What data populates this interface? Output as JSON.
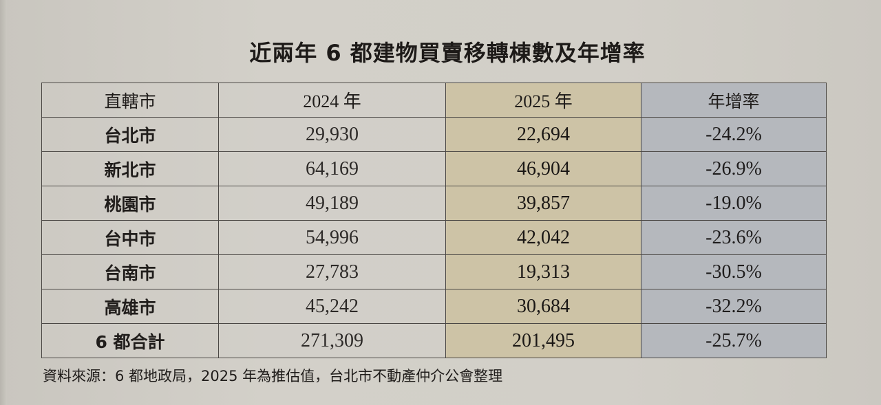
{
  "title": "近兩年 6 都建物買賣移轉棟數及年增率",
  "table": {
    "headers": {
      "city": "直轄市",
      "y2024": "2024 年",
      "y2025": "2025 年",
      "rate": "年增率"
    },
    "rows": [
      {
        "city": "台北市",
        "y2024": "29,930",
        "y2025": "22,694",
        "rate": "-24.2%"
      },
      {
        "city": "新北市",
        "y2024": "64,169",
        "y2025": "46,904",
        "rate": "-26.9%"
      },
      {
        "city": "桃園市",
        "y2024": "49,189",
        "y2025": "39,857",
        "rate": "-19.0%"
      },
      {
        "city": "台中市",
        "y2024": "54,996",
        "y2025": "42,042",
        "rate": "-23.6%"
      },
      {
        "city": "台南市",
        "y2024": "27,783",
        "y2025": "19,313",
        "rate": "-30.5%"
      },
      {
        "city": "高雄市",
        "y2024": "45,242",
        "y2025": "30,684",
        "rate": "-32.2%"
      },
      {
        "city": "6 都合計",
        "y2024": "271,309",
        "y2025": "201,495",
        "rate": "-25.7%"
      }
    ]
  },
  "source": "資料來源：6 都地政局，2025 年為推估值，台北市不動產仲介公會整理",
  "colors": {
    "col_2025_bg": "#cdc3a6",
    "col_rate_bg": "#b5b8bd",
    "page_bg": "#cfccc5",
    "border": "#4a4744"
  },
  "chart_data": {
    "type": "table",
    "title": "近兩年 6 都建物買賣移轉棟數及年增率",
    "columns": [
      "直轄市",
      "2024 年",
      "2025 年",
      "年增率"
    ],
    "rows": [
      [
        "台北市",
        29930,
        22694,
        -24.2
      ],
      [
        "新北市",
        64169,
        46904,
        -26.9
      ],
      [
        "桃園市",
        49189,
        39857,
        -19.0
      ],
      [
        "台中市",
        54996,
        42042,
        -23.6
      ],
      [
        "台南市",
        27783,
        19313,
        -30.5
      ],
      [
        "高雄市",
        45242,
        30684,
        -32.2
      ],
      [
        "6 都合計",
        271309,
        201495,
        -25.7
      ]
    ],
    "note": "資料來源：6 都地政局，2025 年為推估值，台北市不動產仲介公會整理"
  }
}
